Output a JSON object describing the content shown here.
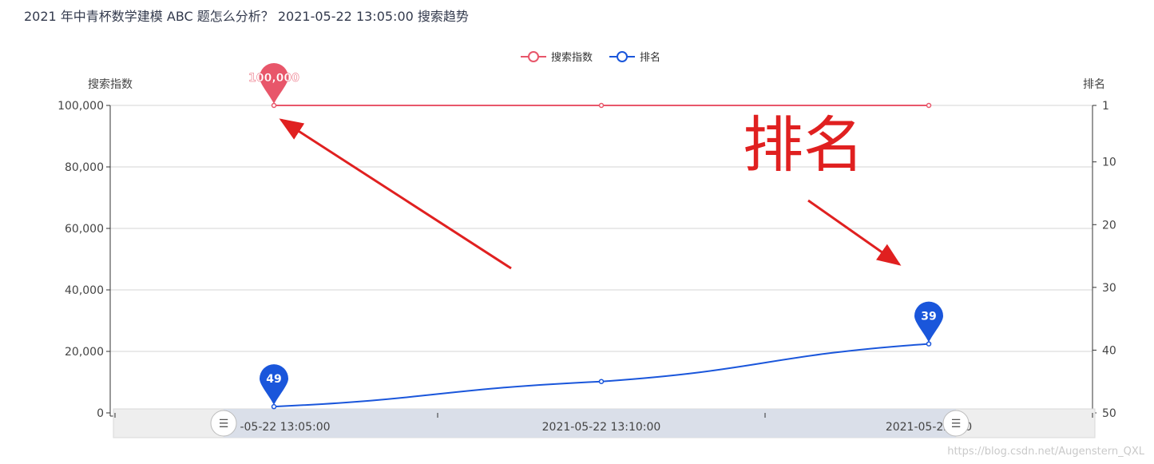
{
  "page": {
    "title": "2021 年中青杯数学建模 ABC 题怎么分析？ 2021-05-22 13:05:00 搜索趋势",
    "watermark": "https://blog.csdn.net/Augenstern_QXL"
  },
  "annotation": {
    "text": "排名",
    "color": "#e02020"
  },
  "chart_data": {
    "type": "line",
    "x": [
      "2021-05-22 13:05:00",
      "2021-05-22 13:10:00",
      "2021-05-22 13:15:00"
    ],
    "x_tick_labels": [
      "-05-22 13:05:00",
      "2021-05-22 13:10:00",
      "2021-05-22 :00"
    ],
    "yaxis_left": {
      "label": "搜索指数",
      "range": [
        0,
        100000
      ],
      "ticks": [
        0,
        20000,
        40000,
        60000,
        80000,
        100000
      ],
      "tick_labels": [
        "0",
        "20,000",
        "40,000",
        "60,000",
        "80,000",
        "100,000"
      ]
    },
    "yaxis_right": {
      "label": "排名",
      "range": [
        1,
        50
      ],
      "inverse": true,
      "ticks": [
        1,
        10,
        20,
        30,
        40,
        50
      ],
      "tick_labels": [
        "1",
        "10",
        "20",
        "30",
        "40",
        "50"
      ]
    },
    "series": [
      {
        "name": "搜索指数",
        "axis": "left",
        "values": [
          100000,
          100000,
          100000
        ],
        "color": "#e8566a",
        "markers": [
          {
            "index": 0,
            "label": "100,000"
          }
        ]
      },
      {
        "name": "排名",
        "axis": "right",
        "values": [
          49,
          45,
          39
        ],
        "color": "#1a56db",
        "markers": [
          {
            "index": 0,
            "label": "49"
          },
          {
            "index": 2,
            "label": "39"
          }
        ]
      }
    ],
    "grid": true,
    "legend_position": "top-center"
  }
}
